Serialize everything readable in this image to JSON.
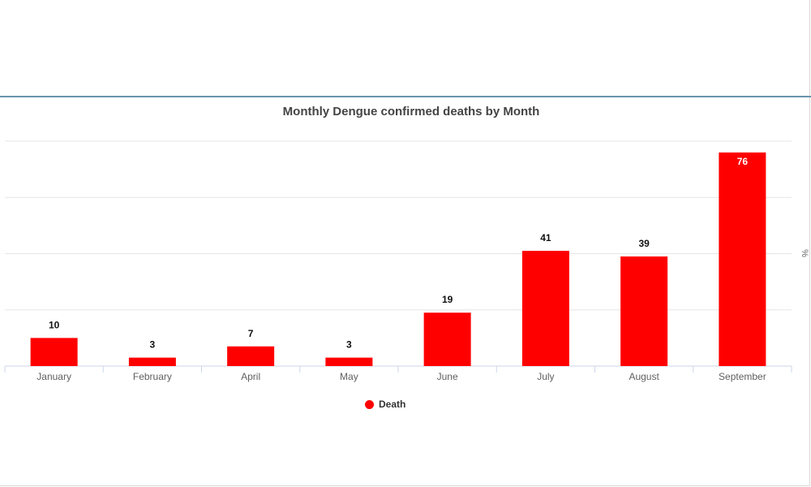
{
  "colors": {
    "bar": "#ff0000",
    "grid": "#e6e6e6",
    "axis": "#ccd6eb"
  },
  "chart_data": {
    "type": "bar",
    "title": "Monthly Dengue confirmed deaths by Month",
    "categories": [
      "January",
      "February",
      "April",
      "May",
      "June",
      "July",
      "August",
      "September"
    ],
    "series": [
      {
        "name": "Death",
        "values": [
          10,
          3,
          7,
          3,
          19,
          41,
          39,
          76
        ]
      }
    ],
    "xlabel": "",
    "ylabel": "%",
    "ylim": [
      0,
      80
    ],
    "grid": true,
    "legend": "bottom-center",
    "data_labels": true
  }
}
